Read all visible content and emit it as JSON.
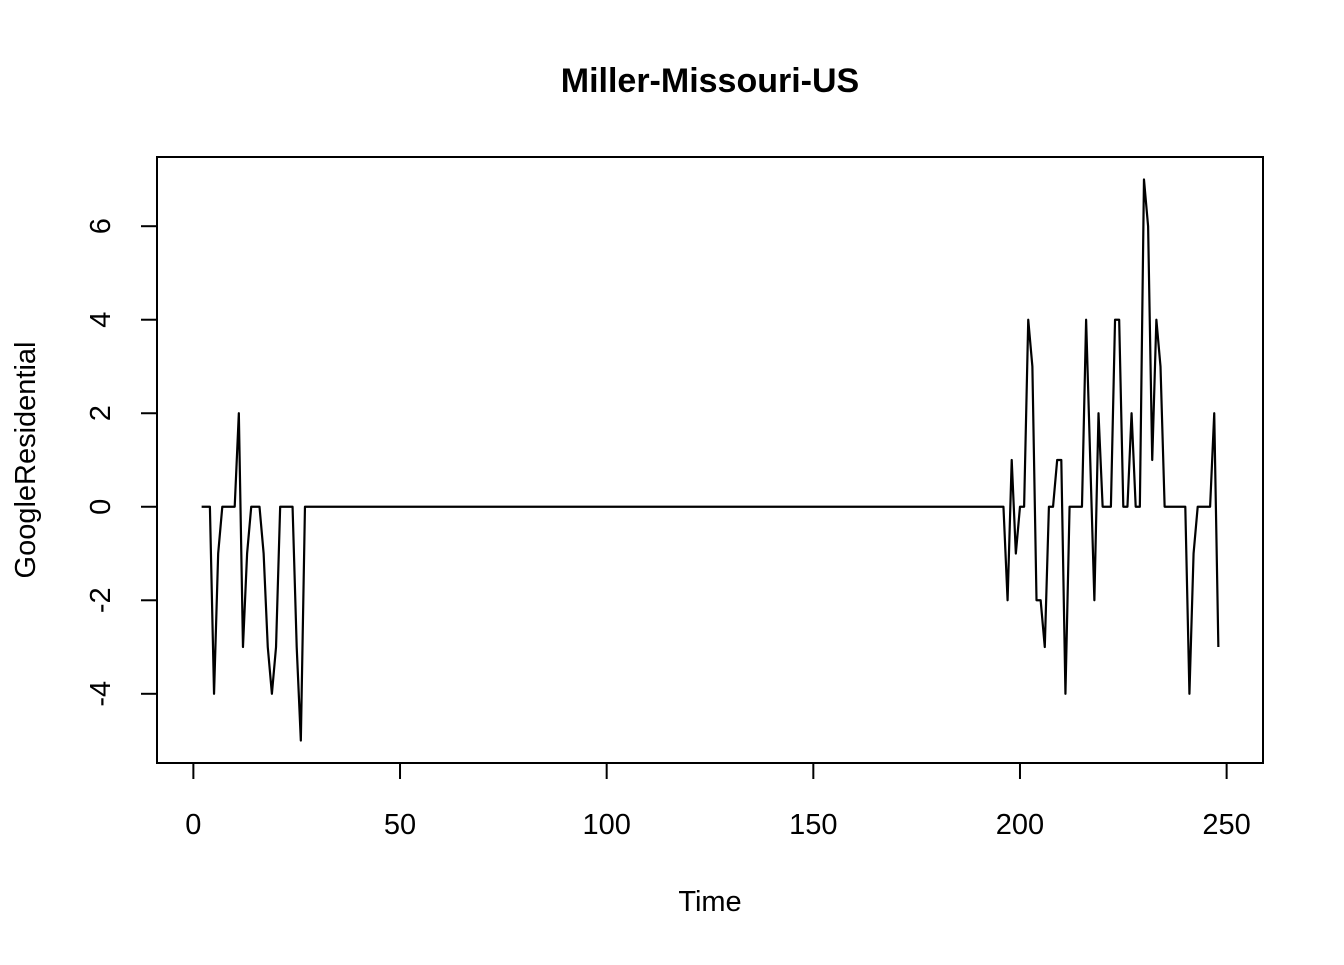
{
  "chart_data": {
    "type": "line",
    "title": "Miller-Missouri-US",
    "xlabel": "Time",
    "ylabel": "GoogleResidential",
    "xlim": [
      -8.8,
      258.8
    ],
    "ylim": [
      -5.48,
      7.48
    ],
    "x_ticks": [
      0,
      50,
      100,
      150,
      200,
      250
    ],
    "y_ticks": [
      -4,
      -2,
      0,
      2,
      4,
      6
    ],
    "grid": false,
    "legend": "none",
    "line_color": "#000000",
    "series": [
      {
        "x": [
          2,
          3,
          4,
          5,
          6,
          7,
          8,
          9,
          10,
          11,
          12,
          13,
          14,
          15,
          16,
          17,
          18,
          19,
          20,
          21,
          22,
          23,
          24,
          25,
          26,
          27,
          28,
          29,
          30,
          196,
          197,
          198,
          199,
          200,
          201,
          202,
          203,
          204,
          205,
          206,
          207,
          208,
          209,
          210,
          211,
          212,
          213,
          214,
          215,
          216,
          217,
          218,
          219,
          220,
          221,
          222,
          223,
          224,
          225,
          226,
          227,
          228,
          229,
          230,
          231,
          232,
          233,
          234,
          235,
          236,
          237,
          238,
          239,
          240,
          241,
          242,
          243,
          244,
          245,
          246,
          247,
          248
        ],
        "y": [
          0,
          0,
          0,
          -4,
          -1,
          0,
          0,
          0,
          0,
          2,
          -3,
          -1,
          0,
          0,
          0,
          -1,
          -3,
          -4,
          -3,
          0,
          0,
          0,
          0,
          -3,
          -5,
          0,
          0,
          0,
          0,
          0,
          -2,
          1,
          -1,
          0,
          0,
          4,
          3,
          -2,
          -2,
          -3,
          0,
          0,
          1,
          1,
          -4,
          0,
          0,
          0,
          0,
          4,
          1,
          -2,
          2,
          0,
          0,
          0,
          4,
          4,
          0,
          0,
          2,
          0,
          0,
          7,
          6,
          1,
          4,
          3,
          0,
          0,
          0,
          0,
          0,
          0,
          -4,
          -1,
          0,
          0,
          0,
          0,
          2,
          -3
        ]
      }
    ]
  }
}
